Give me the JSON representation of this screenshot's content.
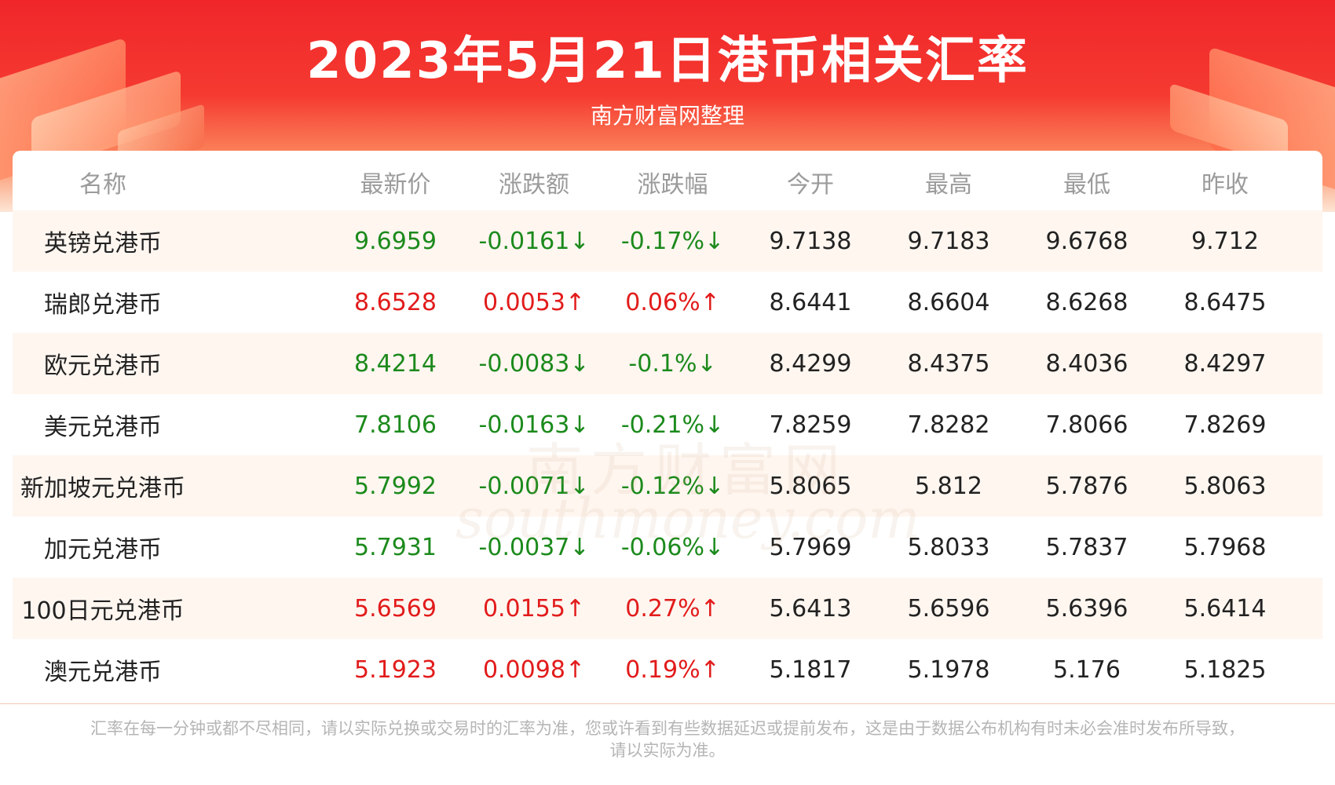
{
  "header": {
    "title": "2023年5月21日港币相关汇率",
    "subtitle": "南方财富网整理"
  },
  "watermark": {
    "cn": "南方财富网",
    "en": "southmoney.com"
  },
  "colors": {
    "up": "#e21b1b",
    "down": "#1c8a1c",
    "header_red": "#f0262a"
  },
  "table": {
    "columns": [
      "名称",
      "最新价",
      "涨跌额",
      "涨跌幅",
      "今开",
      "最高",
      "最低",
      "昨收"
    ],
    "rows": [
      {
        "name": "英镑兑港币",
        "latest": "9.6959",
        "change": "-0.0161↓",
        "pct": "-0.17%↓",
        "open": "9.7138",
        "high": "9.7183",
        "low": "9.6768",
        "prev": "9.712",
        "trend": "down"
      },
      {
        "name": "瑞郎兑港币",
        "latest": "8.6528",
        "change": "0.0053↑",
        "pct": "0.06%↑",
        "open": "8.6441",
        "high": "8.6604",
        "low": "8.6268",
        "prev": "8.6475",
        "trend": "up"
      },
      {
        "name": "欧元兑港币",
        "latest": "8.4214",
        "change": "-0.0083↓",
        "pct": "-0.1%↓",
        "open": "8.4299",
        "high": "8.4375",
        "low": "8.4036",
        "prev": "8.4297",
        "trend": "down"
      },
      {
        "name": "美元兑港币",
        "latest": "7.8106",
        "change": "-0.0163↓",
        "pct": "-0.21%↓",
        "open": "7.8259",
        "high": "7.8282",
        "low": "7.8066",
        "prev": "7.8269",
        "trend": "down"
      },
      {
        "name": "新加坡元兑港币",
        "latest": "5.7992",
        "change": "-0.0071↓",
        "pct": "-0.12%↓",
        "open": "5.8065",
        "high": "5.812",
        "low": "5.7876",
        "prev": "5.8063",
        "trend": "down"
      },
      {
        "name": "加元兑港币",
        "latest": "5.7931",
        "change": "-0.0037↓",
        "pct": "-0.06%↓",
        "open": "5.7969",
        "high": "5.8033",
        "low": "5.7837",
        "prev": "5.7968",
        "trend": "down"
      },
      {
        "name": "100日元兑港币",
        "latest": "5.6569",
        "change": "0.0155↑",
        "pct": "0.27%↑",
        "open": "5.6413",
        "high": "5.6596",
        "low": "5.6396",
        "prev": "5.6414",
        "trend": "up"
      },
      {
        "name": "澳元兑港币",
        "latest": "5.1923",
        "change": "0.0098↑",
        "pct": "0.19%↑",
        "open": "5.1817",
        "high": "5.1978",
        "low": "5.176",
        "prev": "5.1825",
        "trend": "up"
      }
    ]
  },
  "footnote": {
    "line1": "汇率在每一分钟或都不尽相同，请以实际兑换或交易时的汇率为准，您或许看到有些数据延迟或提前发布，这是由于数据公布机构有时未必会准时发布所导致，",
    "line2": "请以实际为准。"
  }
}
